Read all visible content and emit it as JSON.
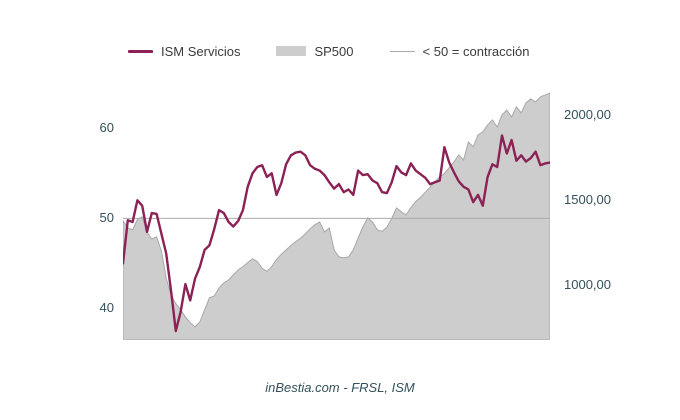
{
  "colors": {
    "ism_line": "#8b2155",
    "sp500_fill": "#cdcdcd",
    "sp500_stroke": "#a8a8a8",
    "threshold_line": "#ababab",
    "axis_text": "#34515c",
    "legend_text": "#3b3b3b",
    "background": "#ffffff"
  },
  "legend": {
    "items": [
      {
        "label": "ISM Servicios",
        "swatch": "maroon-line"
      },
      {
        "label": "SP500",
        "swatch": "gray-area"
      },
      {
        "label": "< 50 = contracción",
        "swatch": "thin-gray-line"
      }
    ]
  },
  "y_axis_left": {
    "ticks": [
      "60",
      "50",
      "40"
    ]
  },
  "y_axis_right": {
    "ticks": [
      "2000,00",
      "1500,00",
      "1000,00"
    ]
  },
  "caption": "inBestia.com - FRSL, ISM",
  "chart_data": {
    "type": "line",
    "title": "",
    "xlabel": "",
    "ylabel_left": "",
    "ylabel_right": "",
    "x_tick_labels": [],
    "grid": false,
    "legend_position": "top",
    "left_axis": {
      "min": 36.5,
      "max": 64.8,
      "ticks": [
        40,
        50,
        60
      ]
    },
    "right_axis": {
      "min": 676,
      "max": 2176,
      "ticks": [
        1000,
        1500,
        2000
      ]
    },
    "threshold": {
      "value": 50,
      "axis": "left",
      "label": "< 50 = contracción"
    },
    "series": [
      {
        "name": "ISM Servicios",
        "style": "line",
        "axis": "left",
        "values": [
          45.0,
          49.8,
          49.6,
          52.0,
          51.4,
          48.5,
          50.6,
          50.5,
          48.3,
          46.1,
          42.0,
          37.5,
          39.6,
          42.7,
          40.9,
          43.3,
          44.6,
          46.5,
          47.0,
          48.8,
          50.9,
          50.6,
          49.6,
          49.1,
          49.7,
          50.9,
          53.5,
          55.0,
          55.7,
          55.9,
          54.6,
          55.0,
          52.6,
          53.9,
          56.0,
          57.0,
          57.3,
          57.4,
          57.0,
          55.9,
          55.5,
          55.3,
          54.8,
          54.0,
          53.3,
          53.8,
          52.9,
          53.2,
          52.6,
          55.3,
          54.8,
          54.9,
          54.2,
          53.9,
          52.9,
          52.8,
          54.0,
          55.8,
          55.1,
          54.8,
          56.1,
          55.3,
          54.9,
          54.5,
          53.8,
          54.0,
          54.2,
          57.9,
          56.2,
          55.1,
          54.1,
          53.5,
          53.2,
          51.8,
          52.6,
          51.4,
          54.6,
          56.0,
          55.7,
          59.2,
          57.2,
          58.7,
          56.4,
          57.0,
          56.3,
          56.7,
          57.4,
          55.9,
          56.1,
          56.2
        ]
      },
      {
        "name": "SP500",
        "style": "area",
        "axis": "right",
        "values": [
          1378,
          1335,
          1325,
          1385,
          1400,
          1310,
          1270,
          1283,
          1200,
          1040,
          940,
          890,
          855,
          812,
          778,
          753,
          782,
          853,
          924,
          935,
          982,
          1012,
          1029,
          1059,
          1088,
          1108,
          1132,
          1153,
          1138,
          1098,
          1080,
          1108,
          1150,
          1180,
          1206,
          1232,
          1255,
          1275,
          1300,
          1330,
          1355,
          1371,
          1312,
          1335,
          1206,
          1165,
          1160,
          1165,
          1206,
          1276,
          1341,
          1395,
          1370,
          1324,
          1315,
          1340,
          1390,
          1453,
          1430,
          1412,
          1455,
          1490,
          1515,
          1545,
          1575,
          1605,
          1635,
          1655,
          1690,
          1724,
          1765,
          1735,
          1841,
          1812,
          1882,
          1900,
          1941,
          1971,
          1929,
          2000,
          2029,
          1988,
          2047,
          2012,
          2071,
          2094,
          2076,
          2106,
          2118,
          2129
        ]
      }
    ]
  }
}
